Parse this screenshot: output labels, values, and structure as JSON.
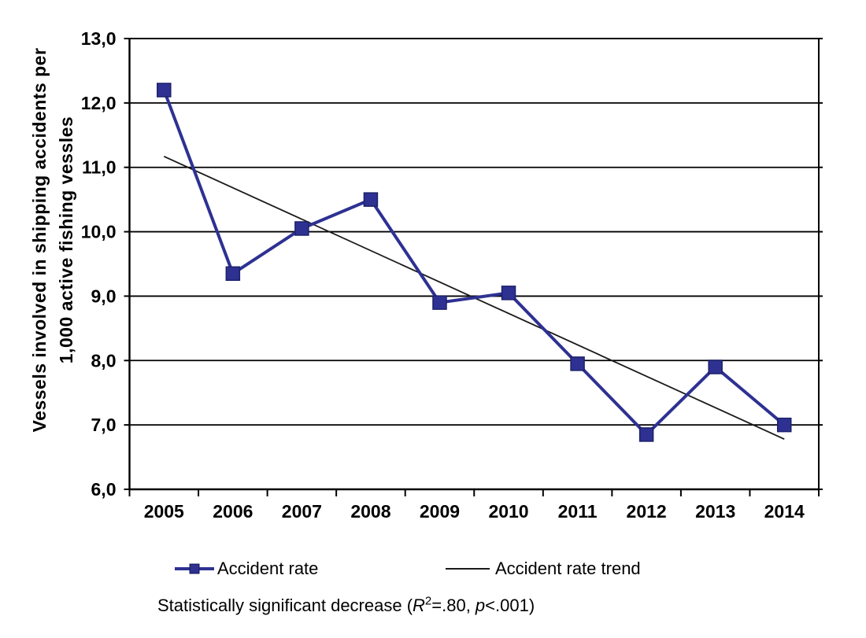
{
  "chart_data": {
    "type": "line",
    "title": "",
    "categories": [
      "2005",
      "2006",
      "2007",
      "2008",
      "2009",
      "2010",
      "2011",
      "2012",
      "2013",
      "2014"
    ],
    "series": [
      {
        "name": "Accident rate",
        "values": [
          12.2,
          9.35,
          10.05,
          10.5,
          8.9,
          9.05,
          7.95,
          6.85,
          7.9,
          7.0
        ],
        "color": "#2e3192",
        "marker": "square",
        "marker_border": "#1c2168"
      },
      {
        "name": "Accident rate trend",
        "type": "linear-trend",
        "trend_endpoints": [
          11.17,
          6.78
        ],
        "color": "#1a1a1a"
      }
    ],
    "ylabel_lines": [
      "Vessels involved in shipping accidents per",
      "1,000 active fishing vessles"
    ],
    "xlabel": "",
    "ylim": [
      6,
      13
    ],
    "ytick_values": [
      13,
      12,
      11,
      10,
      9,
      8,
      7,
      6
    ],
    "ytick_labels": [
      "13,0",
      "12,0",
      "11,0",
      "10,0",
      "9,0",
      "8,0",
      "7,0",
      "6,0"
    ],
    "grid": true,
    "legend_position": "bottom",
    "annotation": "Statistically significant decrease (R²=.80, p<.001)"
  },
  "legend": {
    "item1": "Accident rate",
    "item2": "Accident rate trend"
  },
  "note": {
    "pre": "Statistically significant decrease (",
    "r": "R",
    "sup": "2",
    "mid": "=.80, ",
    "p": "p",
    "post": "<.001)"
  },
  "colors": {
    "series": "#2e3192",
    "trend": "#1a1a1a",
    "grid": "#000000"
  }
}
